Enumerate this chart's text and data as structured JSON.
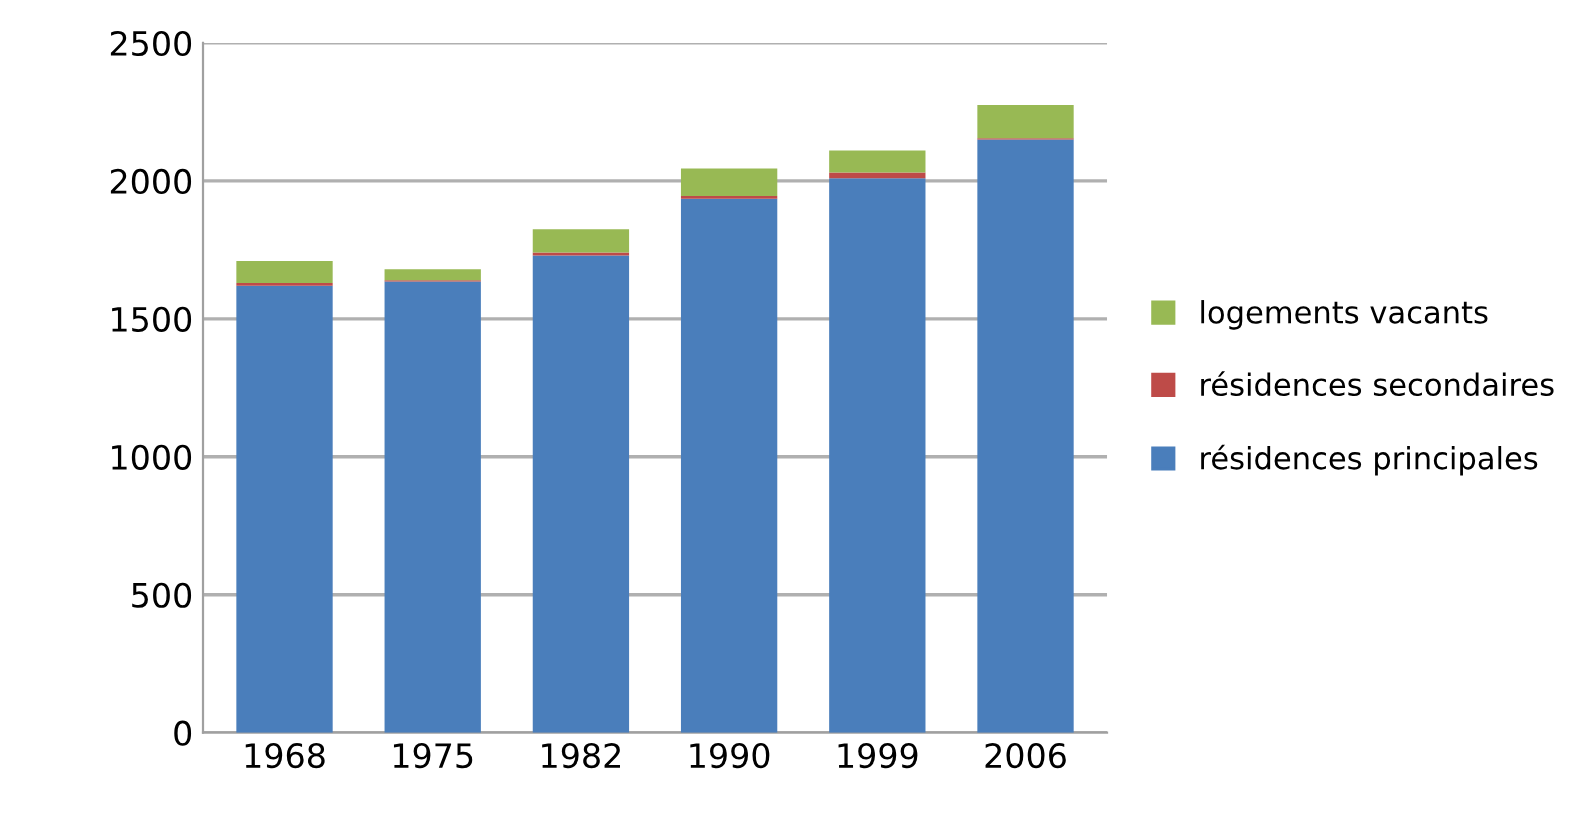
{
  "chart_data": {
    "type": "bar",
    "stacked": true,
    "categories": [
      "1968",
      "1975",
      "1982",
      "1990",
      "1999",
      "2006"
    ],
    "series": [
      {
        "name": "résidences principales",
        "color": "#4a7ebb",
        "values": [
          1620,
          1635,
          1730,
          1935,
          2010,
          2150
        ]
      },
      {
        "name": "résidences secondaires",
        "color": "#be4b48",
        "values": [
          10,
          5,
          10,
          10,
          20,
          5
        ]
      },
      {
        "name": "logements vacants",
        "color": "#98b954",
        "values": [
          80,
          40,
          85,
          100,
          80,
          120
        ]
      }
    ],
    "ylim": [
      0,
      2500
    ],
    "yticks": [
      0,
      500,
      1000,
      1500,
      2000,
      2500
    ],
    "grid": "y",
    "legend": "right"
  }
}
